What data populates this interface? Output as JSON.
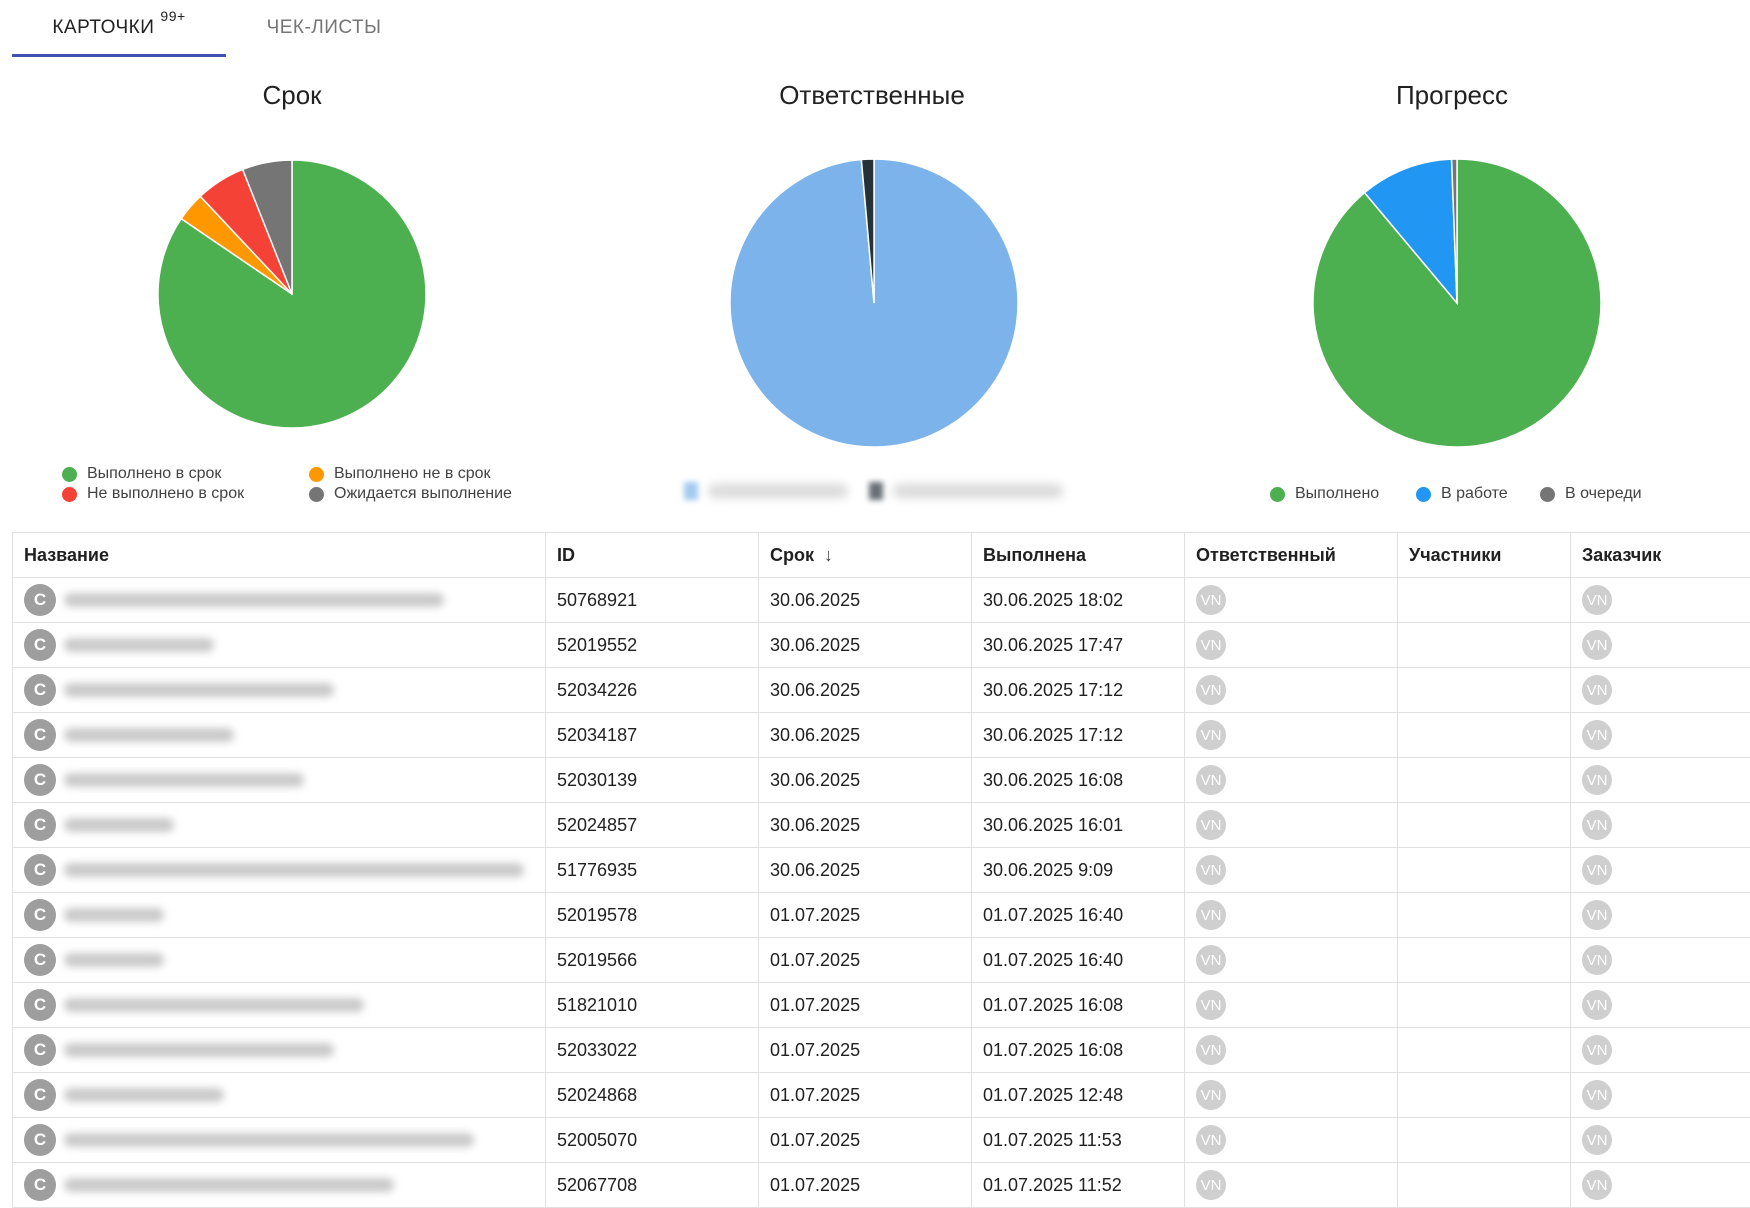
{
  "tabs": {
    "cards_label": "КАРТОЧКИ",
    "cards_badge": "99+",
    "checklists_label": "ЧЕК-ЛИСТЫ"
  },
  "charts": {
    "deadline": {
      "title": "Срок",
      "legend": [
        "Выполнено в срок",
        "Выполнено не в срок",
        "Не выполнено в срок",
        "Ожидается выполнение"
      ]
    },
    "responsible": {
      "title": "Ответственные"
    },
    "progress": {
      "title": "Прогресс",
      "legend": [
        "Выполнено",
        "В работе",
        "В очереди"
      ]
    }
  },
  "chart_data": [
    {
      "type": "pie",
      "title": "Срок",
      "series": [
        {
          "name": "Выполнено в срок",
          "value": 84.5,
          "color": "#4caf50"
        },
        {
          "name": "Выполнено не в срок",
          "value": 3.5,
          "color": "#ff9800"
        },
        {
          "name": "Не выполнено в срок",
          "value": 6.0,
          "color": "#f44336"
        },
        {
          "name": "Ожидается выполнение",
          "value": 6.0,
          "color": "#757575"
        }
      ],
      "legend": "bottom"
    },
    {
      "type": "pie",
      "title": "Ответственные",
      "series": [
        {
          "value": 98.6,
          "color": "#7cb3ea"
        },
        {
          "value": 1.4,
          "color": "#263238"
        }
      ],
      "legend": "bottom"
    },
    {
      "type": "pie",
      "title": "Прогресс",
      "series": [
        {
          "name": "Выполнено",
          "value": 88.9,
          "color": "#4caf50"
        },
        {
          "name": "В работе",
          "value": 10.5,
          "color": "#2196f3"
        },
        {
          "name": "В очереди",
          "value": 0.6,
          "color": "#757575"
        }
      ],
      "legend": "bottom"
    }
  ],
  "table": {
    "headers": {
      "name": "Название",
      "id": "ID",
      "due": "Срок",
      "done": "Выполнена",
      "responsible": "Ответственный",
      "participants": "Участники",
      "customer": "Заказчик"
    },
    "sort_icon": "↓",
    "rows": [
      {
        "avatar": "C",
        "id": "50768921",
        "due": "30.06.2025",
        "done": "30.06.2025 18:02",
        "responsible": "VN",
        "customer": "VN"
      },
      {
        "avatar": "C",
        "id": "52019552",
        "due": "30.06.2025",
        "done": "30.06.2025 17:47",
        "responsible": "VN",
        "customer": "VN"
      },
      {
        "avatar": "C",
        "id": "52034226",
        "due": "30.06.2025",
        "done": "30.06.2025 17:12",
        "responsible": "VN",
        "customer": "VN"
      },
      {
        "avatar": "C",
        "id": "52034187",
        "due": "30.06.2025",
        "done": "30.06.2025 17:12",
        "responsible": "VN",
        "customer": "VN"
      },
      {
        "avatar": "C",
        "id": "52030139",
        "due": "30.06.2025",
        "done": "30.06.2025 16:08",
        "responsible": "VN",
        "customer": "VN"
      },
      {
        "avatar": "C",
        "id": "52024857",
        "due": "30.06.2025",
        "done": "30.06.2025 16:01",
        "responsible": "VN",
        "customer": "VN"
      },
      {
        "avatar": "C",
        "id": "51776935",
        "due": "30.06.2025",
        "done": "30.06.2025 9:09",
        "responsible": "VN",
        "customer": "VN"
      },
      {
        "avatar": "C",
        "id": "52019578",
        "due": "01.07.2025",
        "done": "01.07.2025 16:40",
        "responsible": "VN",
        "customer": "VN"
      },
      {
        "avatar": "C",
        "id": "52019566",
        "due": "01.07.2025",
        "done": "01.07.2025 16:40",
        "responsible": "VN",
        "customer": "VN"
      },
      {
        "avatar": "C",
        "id": "51821010",
        "due": "01.07.2025",
        "done": "01.07.2025 16:08",
        "responsible": "VN",
        "customer": "VN"
      },
      {
        "avatar": "C",
        "id": "52033022",
        "due": "01.07.2025",
        "done": "01.07.2025 16:08",
        "responsible": "VN",
        "customer": "VN"
      },
      {
        "avatar": "C",
        "id": "52024868",
        "due": "01.07.2025",
        "done": "01.07.2025 12:48",
        "responsible": "VN",
        "customer": "VN"
      },
      {
        "avatar": "C",
        "id": "52005070",
        "due": "01.07.2025",
        "done": "01.07.2025 11:53",
        "responsible": "VN",
        "customer": "VN"
      },
      {
        "avatar": "C",
        "id": "52067708",
        "due": "01.07.2025",
        "done": "01.07.2025 11:52",
        "responsible": "VN",
        "customer": "VN"
      }
    ]
  }
}
